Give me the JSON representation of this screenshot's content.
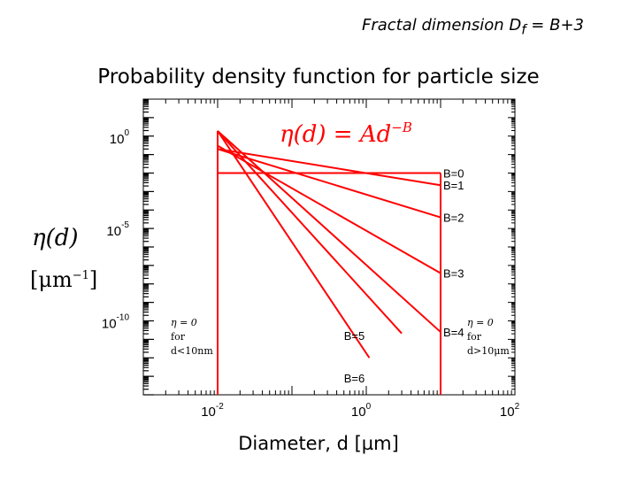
{
  "header": {
    "corner_note": "Fractal dimension D",
    "corner_note_sub": "f",
    "corner_note_tail": " = B+3",
    "title": "Probability density function for particle size"
  },
  "y_axis": {
    "symbol": "η(d)",
    "unit_open": "[μm",
    "unit_exp": "−1",
    "unit_close": "]"
  },
  "chart_data": {
    "type": "line",
    "xlabel": "Diameter, d [µm]",
    "x_scale": "log",
    "y_scale": "log",
    "xlim": [
      0.001,
      100
    ],
    "ylim": [
      1e-14,
      100
    ],
    "x_ticks": [
      {
        "value": 0.01,
        "base": "10",
        "exp": "-2"
      },
      {
        "value": 1,
        "base": "10",
        "exp": "0"
      },
      {
        "value": 100,
        "base": "10",
        "exp": "2"
      }
    ],
    "y_ticks": [
      {
        "value": 1,
        "base": "10",
        "exp": "0"
      },
      {
        "value": 1e-05,
        "base": "10",
        "exp": "-5"
      },
      {
        "value": 1e-10,
        "base": "10",
        "exp": "-10"
      }
    ],
    "equation": {
      "lhs": "η(d) = Ad",
      "exp": "−B"
    },
    "domain": [
      0.01,
      10
    ],
    "series": [
      {
        "name": "B=0",
        "x": [
          0.01,
          10
        ],
        "y": [
          0.01,
          0.01
        ]
      },
      {
        "name": "B=1",
        "x": [
          0.01,
          10
        ],
        "y": [
          0.2,
          0.0022
        ]
      },
      {
        "name": "B=2",
        "x": [
          0.01,
          10
        ],
        "y": [
          0.2,
          4e-05
        ]
      },
      {
        "name": "B=3",
        "x": [
          0.01,
          10
        ],
        "y": [
          0.3,
          3.8e-08
        ]
      },
      {
        "name": "B=4",
        "x": [
          0.01,
          10
        ],
        "y": [
          1.9,
          2.5e-11
        ]
      },
      {
        "name": "B=5",
        "x": [
          0.01,
          3
        ],
        "y": [
          1.9,
          2.1e-11
        ]
      },
      {
        "name": "B=6",
        "x": [
          0.01,
          1.1
        ],
        "y": [
          1.9,
          1e-12
        ]
      }
    ],
    "annotations": [
      {
        "lines": [
          "η = 0",
          "for",
          "d<10nm"
        ]
      },
      {
        "lines": [
          "η = 0",
          "for",
          "d>10μm"
        ]
      }
    ],
    "line_color": "#ff0000",
    "grid": false
  }
}
